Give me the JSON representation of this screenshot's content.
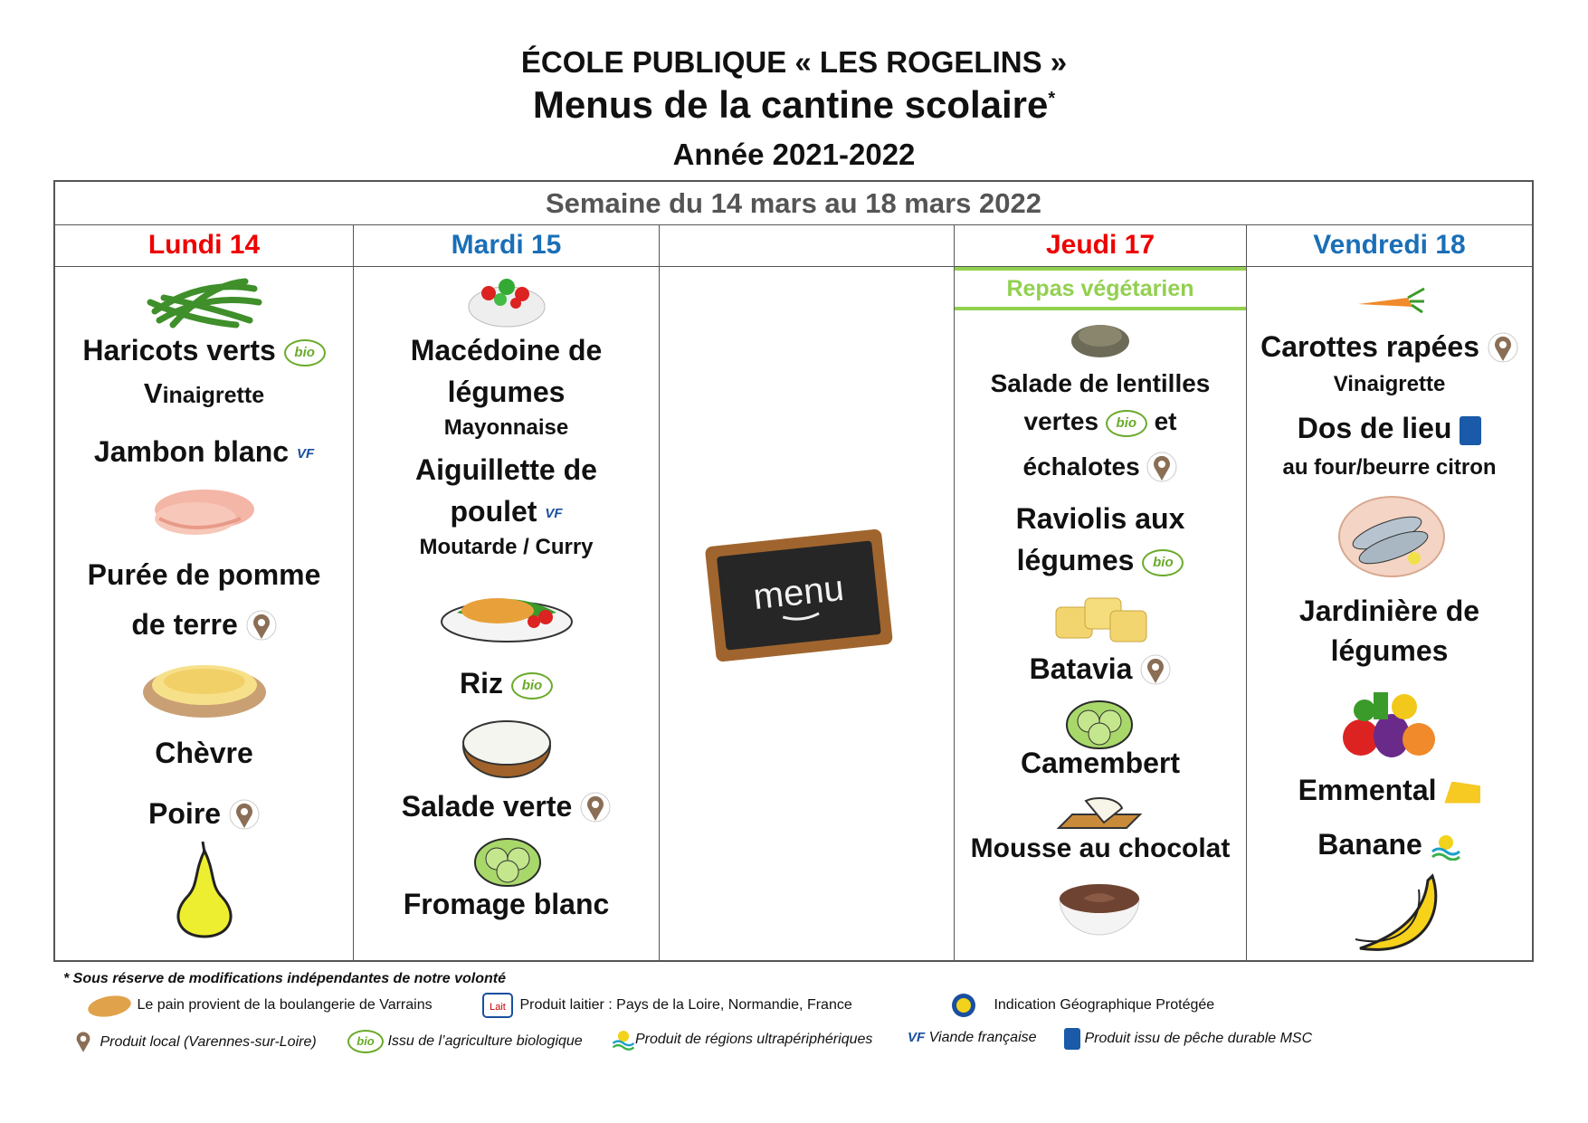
{
  "header": {
    "school": "ÉCOLE PUBLIQUE « LES ROGELINS »",
    "title": "Menus de la cantine scolaire",
    "title_mark": "*",
    "year": "Année 2021-2022"
  },
  "week_label": "Semaine du 14 mars au 18 mars 2022",
  "days": {
    "lundi": "Lundi 14",
    "mardi": "Mardi 15",
    "mercredi": "",
    "jeudi": "Jeudi 17",
    "vendredi": "Vendredi 18"
  },
  "colors": {
    "red_day": "#e00000",
    "blue_day": "#1a6fb7",
    "veg_green": "#92d050",
    "border": "#555555"
  },
  "lundi": {
    "i1": "Haricots verts",
    "i1s_first": "V",
    "i1s_rest": "inaigrette",
    "i2": "Jambon blanc",
    "i3a": "Purée de pomme",
    "i3b": "de terre",
    "i4": "Chèvre",
    "i5": "Poire"
  },
  "mardi": {
    "i1a": "Macédoine de",
    "i1b": "légumes",
    "i1s": "Mayonnaise",
    "i2a": "Aiguillette de",
    "i2b": "poulet",
    "i2s": "Moutarde / Curry",
    "i3": "Riz",
    "i4": "Salade verte",
    "i5": "Fromage blanc"
  },
  "mercredi": {
    "board": "menu"
  },
  "jeudi": {
    "veg_label": "Repas végétarien",
    "i1a": "Salade de lentilles",
    "i1b": "vertes",
    "i1c": "et",
    "i1d": "échalotes",
    "i2a": "Raviolis aux",
    "i2b": "légumes",
    "i3": "Batavia",
    "i4": "Camembert",
    "i5": "Mousse au chocolat"
  },
  "vendredi": {
    "i1": "Carottes rapées",
    "i1s": "Vinaigrette",
    "i2": "Dos de lieu",
    "i2s": "au four/beurre citron",
    "i3a": "Jardinière de",
    "i3b": "légumes",
    "i4": "Emmental",
    "i5": "Banane"
  },
  "logos": {
    "bio": "bio",
    "vf": "VF"
  },
  "footer": {
    "note": "* Sous réserve de modifications indépendantes de notre volonté",
    "bread": "Le pain provient de la boulangerie de Varrains",
    "lait_logo": "Lait",
    "dairy": "Produit laitier : Pays de la Loire, Normandie, France",
    "igp": "Indication Géographique Protégée",
    "local": "Produit local (Varennes-sur-Loire)",
    "bio": "Issu de l’agriculture biologique",
    "ultra": "Produit de régions ultrapériphériques",
    "vf": "Viande française",
    "msc": "Produit issu de pêche durable MSC"
  }
}
